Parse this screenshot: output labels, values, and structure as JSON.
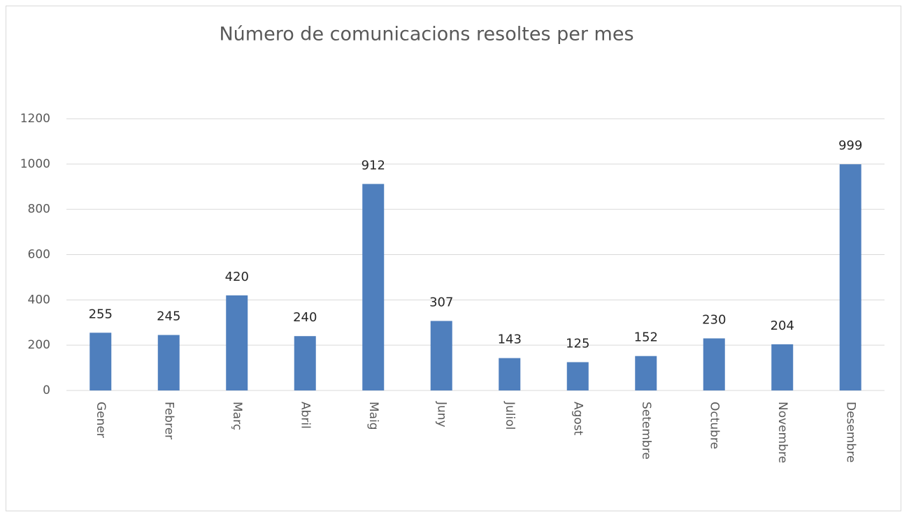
{
  "chart_data": {
    "type": "bar",
    "title": "Número de comunicacions resoltes per mes",
    "categories": [
      "Gener",
      "Febrer",
      "Març",
      "Abril",
      "Maig",
      "Juny",
      "Juliol",
      "Agost",
      "Setembre",
      "Octubre",
      "Novembre",
      "Desembre"
    ],
    "values": [
      255,
      245,
      420,
      240,
      912,
      307,
      143,
      125,
      152,
      230,
      204,
      999
    ],
    "color": "#4f7fbd",
    "ylim": [
      0,
      1200
    ],
    "yticks": [
      0,
      200,
      400,
      600,
      800,
      1000,
      1200
    ],
    "grid": true
  }
}
